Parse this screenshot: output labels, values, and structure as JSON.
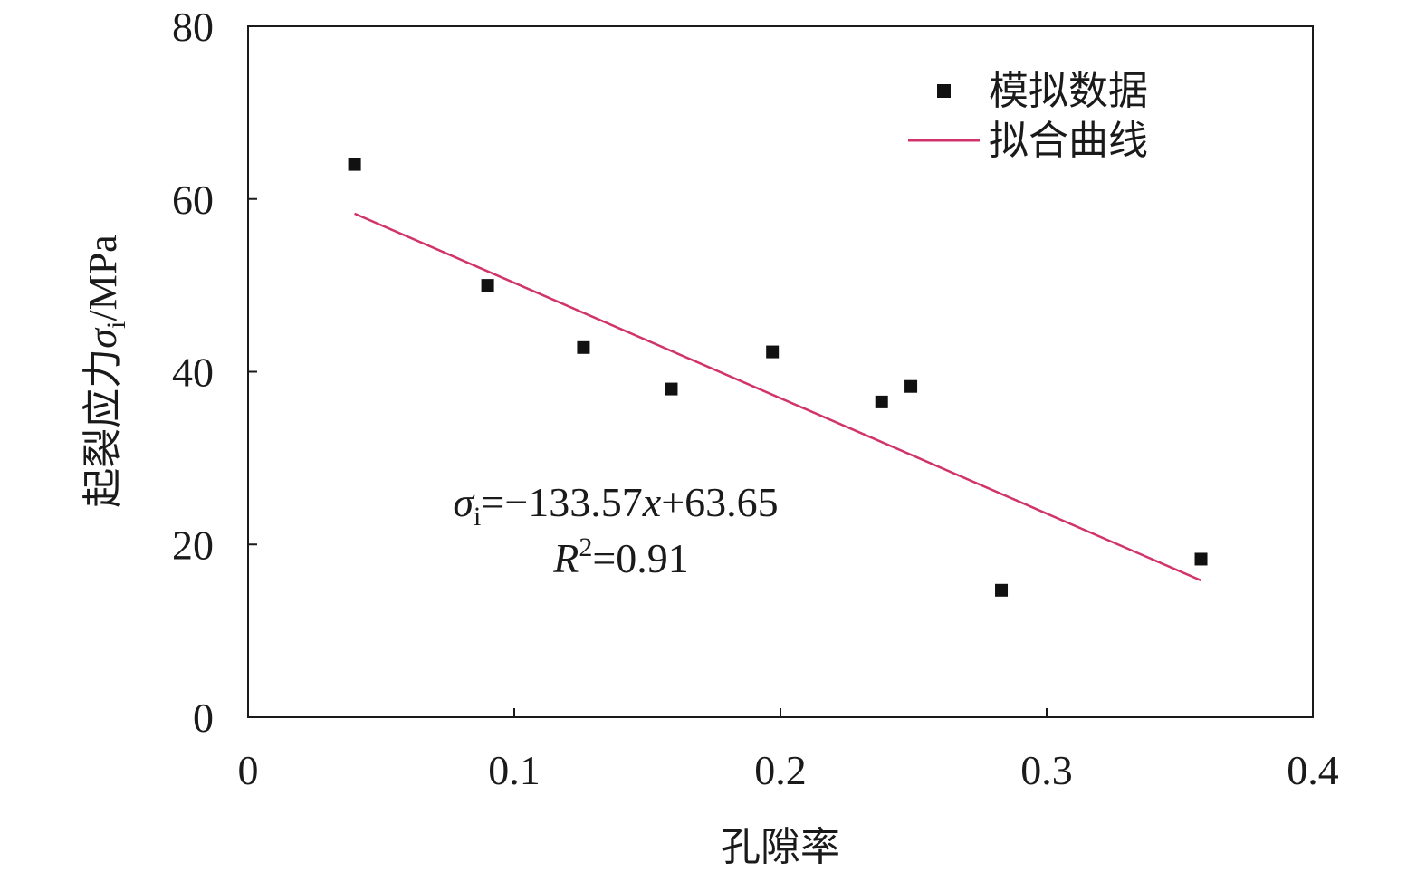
{
  "chart_data": {
    "type": "scatter",
    "xlabel": "孔隙率",
    "ylabel": {
      "prefix": "起裂应力",
      "symbol": "σ",
      "subscript": "i",
      "unit": "/MPa"
    },
    "xlim": [
      0,
      0.4
    ],
    "ylim": [
      0,
      80
    ],
    "xticks": [
      0,
      0.1,
      0.2,
      0.3,
      0.4
    ],
    "xtick_labels": [
      "0",
      "0.1",
      "0.2",
      "0.3",
      "0.4"
    ],
    "yticks": [
      0,
      20,
      40,
      60,
      80
    ],
    "ytick_labels": [
      "0",
      "20",
      "40",
      "60",
      "80"
    ],
    "grid": false,
    "legend_position": "top-right",
    "series": [
      {
        "name": "模拟数据",
        "type": "scatter",
        "marker": "square",
        "color": "#111111",
        "points": [
          {
            "x": 0.04,
            "y": 64.0
          },
          {
            "x": 0.09,
            "y": 50.0
          },
          {
            "x": 0.126,
            "y": 42.8
          },
          {
            "x": 0.159,
            "y": 38.0
          },
          {
            "x": 0.197,
            "y": 42.3
          },
          {
            "x": 0.238,
            "y": 36.5
          },
          {
            "x": 0.249,
            "y": 38.3
          },
          {
            "x": 0.283,
            "y": 14.7
          },
          {
            "x": 0.358,
            "y": 18.3
          }
        ]
      },
      {
        "name": "拟合曲线",
        "type": "line",
        "color": "#d1336b",
        "slope": -133.57,
        "intercept": 63.65,
        "x_range": [
          0.04,
          0.358
        ]
      }
    ],
    "annotation": {
      "equation": {
        "symbol": "σ",
        "subscript": "i",
        "middle": "=−133.57",
        "variable": "x",
        "tail": "+63.65"
      },
      "r_squared": {
        "symbol": "R",
        "superscript": "2",
        "tail": "=0.91"
      }
    }
  }
}
